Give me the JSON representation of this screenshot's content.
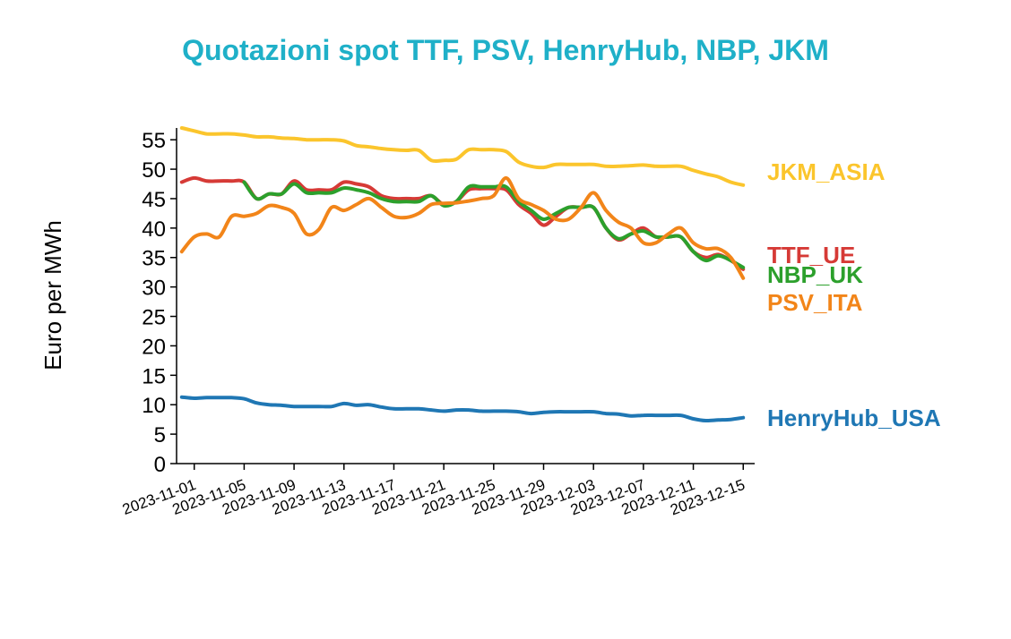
{
  "chart_data": {
    "type": "line",
    "title": "Quotazioni spot TTF, PSV, HenryHub, NBP, JKM",
    "ylabel": "Euro per MWh",
    "xlabel": "",
    "ylim": [
      0,
      57
    ],
    "yticks": [
      0,
      5,
      10,
      15,
      20,
      25,
      30,
      35,
      40,
      45,
      50,
      55
    ],
    "xticks": [
      "2023-11-01",
      "2023-11-05",
      "2023-11-09",
      "2023-11-13",
      "2023-11-17",
      "2023-11-21",
      "2023-11-25",
      "2023-11-29",
      "2023-12-03",
      "2023-12-07",
      "2023-12-11",
      "2023-12-15"
    ],
    "grid": false,
    "legend": "end-of-line labels",
    "series": [
      {
        "name": "JKM_ASIA",
        "color": "#fbc52c",
        "points": [
          [
            "2023-10-31",
            57.0
          ],
          [
            "2023-11-01",
            56.5
          ],
          [
            "2023-11-02",
            56.0
          ],
          [
            "2023-11-03",
            56.0
          ],
          [
            "2023-11-04",
            56.0
          ],
          [
            "2023-11-05",
            55.8
          ],
          [
            "2023-11-06",
            55.5
          ],
          [
            "2023-11-07",
            55.5
          ],
          [
            "2023-11-08",
            55.3
          ],
          [
            "2023-11-09",
            55.2
          ],
          [
            "2023-11-10",
            55.0
          ],
          [
            "2023-11-11",
            55.0
          ],
          [
            "2023-11-12",
            55.0
          ],
          [
            "2023-11-13",
            54.8
          ],
          [
            "2023-11-14",
            54.0
          ],
          [
            "2023-11-15",
            53.8
          ],
          [
            "2023-11-16",
            53.5
          ],
          [
            "2023-11-17",
            53.3
          ],
          [
            "2023-11-18",
            53.2
          ],
          [
            "2023-11-19",
            53.2
          ],
          [
            "2023-11-20",
            51.5
          ],
          [
            "2023-11-21",
            51.5
          ],
          [
            "2023-11-22",
            51.7
          ],
          [
            "2023-11-23",
            53.3
          ],
          [
            "2023-11-24",
            53.3
          ],
          [
            "2023-11-25",
            53.3
          ],
          [
            "2023-11-26",
            53.0
          ],
          [
            "2023-11-27",
            51.2
          ],
          [
            "2023-11-28",
            50.5
          ],
          [
            "2023-11-29",
            50.3
          ],
          [
            "2023-11-30",
            50.8
          ],
          [
            "2023-12-01",
            50.8
          ],
          [
            "2023-12-02",
            50.8
          ],
          [
            "2023-12-03",
            50.8
          ],
          [
            "2023-12-04",
            50.5
          ],
          [
            "2023-12-05",
            50.5
          ],
          [
            "2023-12-06",
            50.6
          ],
          [
            "2023-12-07",
            50.7
          ],
          [
            "2023-12-08",
            50.5
          ],
          [
            "2023-12-09",
            50.5
          ],
          [
            "2023-12-10",
            50.5
          ],
          [
            "2023-12-11",
            49.8
          ],
          [
            "2023-12-12",
            49.2
          ],
          [
            "2023-12-13",
            48.7
          ],
          [
            "2023-12-14",
            47.8
          ],
          [
            "2023-12-15",
            47.3
          ]
        ]
      },
      {
        "name": "TTF_UE",
        "color": "#d63a36",
        "points": [
          [
            "2023-10-31",
            47.8
          ],
          [
            "2023-11-01",
            48.5
          ],
          [
            "2023-11-02",
            48.0
          ],
          [
            "2023-11-03",
            48.0
          ],
          [
            "2023-11-04",
            48.0
          ],
          [
            "2023-11-05",
            47.8
          ],
          [
            "2023-11-06",
            45.0
          ],
          [
            "2023-11-07",
            45.8
          ],
          [
            "2023-11-08",
            45.8
          ],
          [
            "2023-11-09",
            48.0
          ],
          [
            "2023-11-10",
            46.5
          ],
          [
            "2023-11-11",
            46.5
          ],
          [
            "2023-11-12",
            46.5
          ],
          [
            "2023-11-13",
            47.8
          ],
          [
            "2023-11-14",
            47.5
          ],
          [
            "2023-11-15",
            47.0
          ],
          [
            "2023-11-16",
            45.5
          ],
          [
            "2023-11-17",
            45.0
          ],
          [
            "2023-11-18",
            45.0
          ],
          [
            "2023-11-19",
            45.0
          ],
          [
            "2023-11-20",
            45.5
          ],
          [
            "2023-11-21",
            44.0
          ],
          [
            "2023-11-22",
            44.5
          ],
          [
            "2023-11-23",
            46.5
          ],
          [
            "2023-11-24",
            46.7
          ],
          [
            "2023-11-25",
            46.7
          ],
          [
            "2023-11-26",
            46.5
          ],
          [
            "2023-11-27",
            44.0
          ],
          [
            "2023-11-28",
            42.5
          ],
          [
            "2023-11-29",
            40.5
          ],
          [
            "2023-11-30",
            42.0
          ],
          [
            "2023-12-01",
            43.5
          ],
          [
            "2023-12-02",
            43.5
          ],
          [
            "2023-12-03",
            43.5
          ],
          [
            "2023-12-04",
            40.0
          ],
          [
            "2023-12-05",
            38.0
          ],
          [
            "2023-12-06",
            39.0
          ],
          [
            "2023-12-07",
            40.0
          ],
          [
            "2023-12-08",
            38.5
          ],
          [
            "2023-12-09",
            38.5
          ],
          [
            "2023-12-10",
            38.5
          ],
          [
            "2023-12-11",
            36.0
          ],
          [
            "2023-12-12",
            35.0
          ],
          [
            "2023-12-13",
            35.5
          ],
          [
            "2023-12-14",
            34.5
          ],
          [
            "2023-12-15",
            33.0
          ]
        ]
      },
      {
        "name": "NBP_UK",
        "color": "#2ca02c",
        "points": [
          [
            "2023-11-05",
            47.8
          ],
          [
            "2023-11-06",
            45.0
          ],
          [
            "2023-11-07",
            45.8
          ],
          [
            "2023-11-08",
            45.8
          ],
          [
            "2023-11-09",
            47.5
          ],
          [
            "2023-11-10",
            46.0
          ],
          [
            "2023-11-11",
            46.0
          ],
          [
            "2023-11-12",
            46.0
          ],
          [
            "2023-11-13",
            46.8
          ],
          [
            "2023-11-14",
            46.5
          ],
          [
            "2023-11-15",
            46.0
          ],
          [
            "2023-11-16",
            45.0
          ],
          [
            "2023-11-17",
            44.5
          ],
          [
            "2023-11-18",
            44.5
          ],
          [
            "2023-11-19",
            44.5
          ],
          [
            "2023-11-20",
            45.5
          ],
          [
            "2023-11-21",
            43.8
          ],
          [
            "2023-11-22",
            44.5
          ],
          [
            "2023-11-23",
            47.0
          ],
          [
            "2023-11-24",
            47.0
          ],
          [
            "2023-11-25",
            47.0
          ],
          [
            "2023-11-26",
            47.0
          ],
          [
            "2023-11-27",
            44.5
          ],
          [
            "2023-11-28",
            43.0
          ],
          [
            "2023-11-29",
            41.5
          ],
          [
            "2023-11-30",
            42.5
          ],
          [
            "2023-12-01",
            43.5
          ],
          [
            "2023-12-02",
            43.5
          ],
          [
            "2023-12-03",
            43.5
          ],
          [
            "2023-12-04",
            40.0
          ],
          [
            "2023-12-05",
            38.2
          ],
          [
            "2023-12-06",
            39.0
          ],
          [
            "2023-12-07",
            39.5
          ],
          [
            "2023-12-08",
            38.5
          ],
          [
            "2023-12-09",
            38.5
          ],
          [
            "2023-12-10",
            38.5
          ],
          [
            "2023-12-11",
            36.0
          ],
          [
            "2023-12-12",
            34.5
          ],
          [
            "2023-12-13",
            35.3
          ],
          [
            "2023-12-14",
            34.5
          ],
          [
            "2023-12-15",
            33.3
          ]
        ]
      },
      {
        "name": "PSV_ITA",
        "color": "#f28519",
        "points": [
          [
            "2023-10-31",
            36.0
          ],
          [
            "2023-11-01",
            38.5
          ],
          [
            "2023-11-02",
            39.0
          ],
          [
            "2023-11-03",
            38.5
          ],
          [
            "2023-11-04",
            42.0
          ],
          [
            "2023-11-05",
            42.0
          ],
          [
            "2023-11-06",
            42.5
          ],
          [
            "2023-11-07",
            43.8
          ],
          [
            "2023-11-08",
            43.5
          ],
          [
            "2023-11-09",
            42.5
          ],
          [
            "2023-11-10",
            39.0
          ],
          [
            "2023-11-11",
            39.8
          ],
          [
            "2023-11-12",
            43.5
          ],
          [
            "2023-11-13",
            43.0
          ],
          [
            "2023-11-14",
            44.0
          ],
          [
            "2023-11-15",
            45.0
          ],
          [
            "2023-11-16",
            43.5
          ],
          [
            "2023-11-17",
            42.0
          ],
          [
            "2023-11-18",
            41.8
          ],
          [
            "2023-11-19",
            42.5
          ],
          [
            "2023-11-20",
            44.0
          ],
          [
            "2023-11-21",
            44.2
          ],
          [
            "2023-11-22",
            44.3
          ],
          [
            "2023-11-23",
            44.6
          ],
          [
            "2023-11-24",
            45.0
          ],
          [
            "2023-11-25",
            45.5
          ],
          [
            "2023-11-26",
            48.5
          ],
          [
            "2023-11-27",
            45.0
          ],
          [
            "2023-11-28",
            44.0
          ],
          [
            "2023-11-29",
            43.0
          ],
          [
            "2023-11-30",
            41.5
          ],
          [
            "2023-12-01",
            41.5
          ],
          [
            "2023-12-02",
            43.5
          ],
          [
            "2023-12-03",
            46.0
          ],
          [
            "2023-12-04",
            43.0
          ],
          [
            "2023-12-05",
            41.0
          ],
          [
            "2023-12-06",
            40.0
          ],
          [
            "2023-12-07",
            37.5
          ],
          [
            "2023-12-08",
            37.5
          ],
          [
            "2023-12-09",
            39.0
          ],
          [
            "2023-12-10",
            40.0
          ],
          [
            "2023-12-11",
            37.5
          ],
          [
            "2023-12-12",
            36.5
          ],
          [
            "2023-12-13",
            36.5
          ],
          [
            "2023-12-14",
            35.0
          ],
          [
            "2023-12-15",
            31.5
          ]
        ]
      },
      {
        "name": "HenryHub_USA",
        "color": "#1f77b4",
        "points": [
          [
            "2023-10-31",
            11.3
          ],
          [
            "2023-11-01",
            11.1
          ],
          [
            "2023-11-02",
            11.2
          ],
          [
            "2023-11-03",
            11.2
          ],
          [
            "2023-11-04",
            11.2
          ],
          [
            "2023-11-05",
            11.0
          ],
          [
            "2023-11-06",
            10.3
          ],
          [
            "2023-11-07",
            10.0
          ],
          [
            "2023-11-08",
            9.9
          ],
          [
            "2023-11-09",
            9.7
          ],
          [
            "2023-11-10",
            9.7
          ],
          [
            "2023-11-11",
            9.7
          ],
          [
            "2023-11-12",
            9.7
          ],
          [
            "2023-11-13",
            10.2
          ],
          [
            "2023-11-14",
            9.9
          ],
          [
            "2023-11-15",
            10.0
          ],
          [
            "2023-11-16",
            9.6
          ],
          [
            "2023-11-17",
            9.3
          ],
          [
            "2023-11-18",
            9.3
          ],
          [
            "2023-11-19",
            9.3
          ],
          [
            "2023-11-20",
            9.1
          ],
          [
            "2023-11-21",
            8.9
          ],
          [
            "2023-11-22",
            9.1
          ],
          [
            "2023-11-23",
            9.1
          ],
          [
            "2023-11-24",
            8.9
          ],
          [
            "2023-11-25",
            8.9
          ],
          [
            "2023-11-26",
            8.9
          ],
          [
            "2023-11-27",
            8.8
          ],
          [
            "2023-11-28",
            8.5
          ],
          [
            "2023-11-29",
            8.7
          ],
          [
            "2023-11-30",
            8.8
          ],
          [
            "2023-12-01",
            8.8
          ],
          [
            "2023-12-02",
            8.8
          ],
          [
            "2023-12-03",
            8.8
          ],
          [
            "2023-12-04",
            8.5
          ],
          [
            "2023-12-05",
            8.4
          ],
          [
            "2023-12-06",
            8.1
          ],
          [
            "2023-12-07",
            8.2
          ],
          [
            "2023-12-08",
            8.2
          ],
          [
            "2023-12-09",
            8.2
          ],
          [
            "2023-12-10",
            8.2
          ],
          [
            "2023-12-11",
            7.6
          ],
          [
            "2023-12-12",
            7.3
          ],
          [
            "2023-12-13",
            7.4
          ],
          [
            "2023-12-14",
            7.5
          ],
          [
            "2023-12-15",
            7.8
          ]
        ]
      }
    ]
  }
}
